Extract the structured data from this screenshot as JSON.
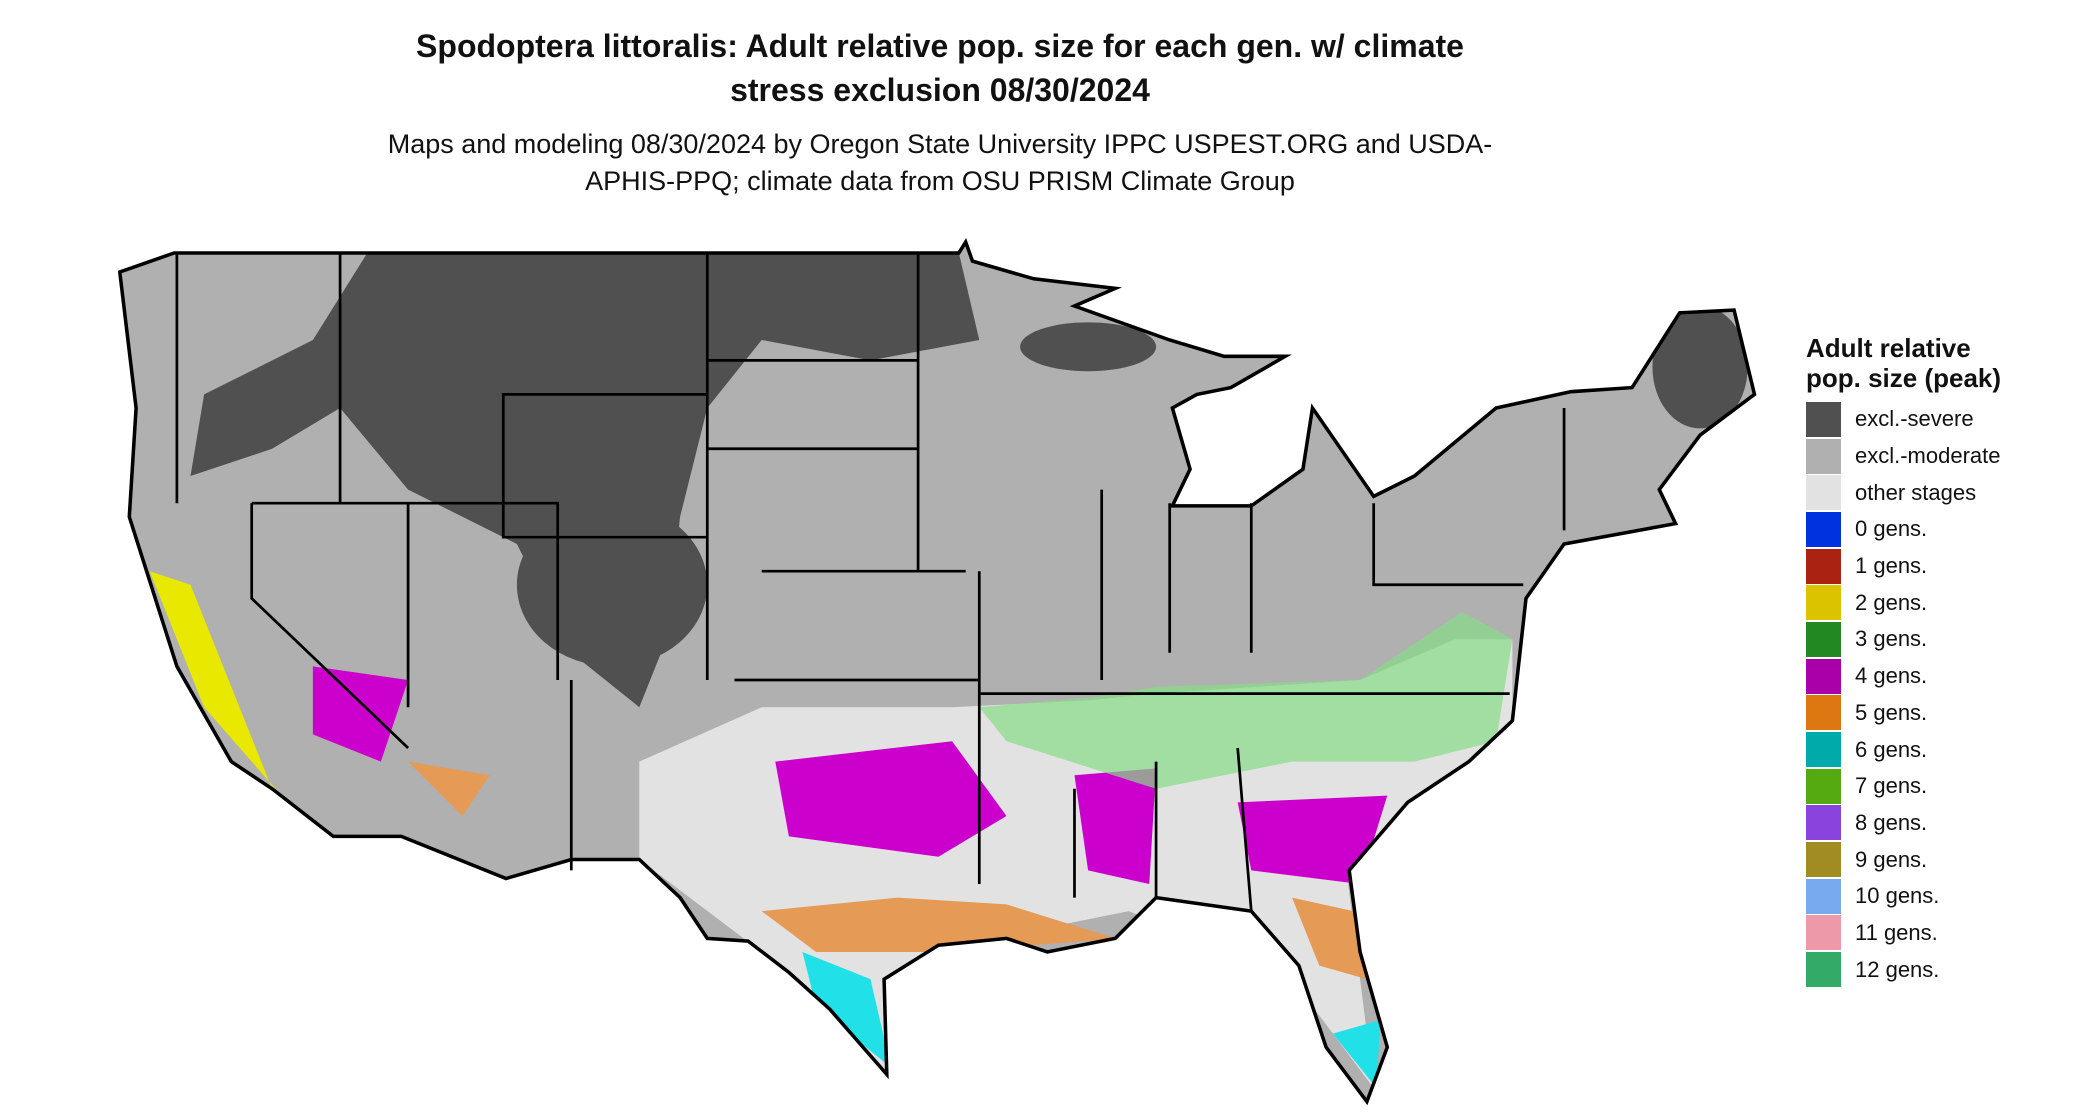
{
  "title": "Spodoptera littoralis: Adult relative pop. size for each gen. w/ climate stress exclusion 08/30/2024",
  "subtitle": "Maps and modeling 08/30/2024 by Oregon State University IPPC USPEST.ORG and USDA-APHIS-PPQ; climate data from OSU PRISM Climate Group",
  "legend": {
    "title": "Adult relative pop. size (peak)",
    "items": [
      {
        "label": "excl.-severe",
        "color": "#505050"
      },
      {
        "label": "excl.-moderate",
        "color": "#b0b0b0"
      },
      {
        "label": "other stages",
        "color": "#e2e2e2"
      },
      {
        "label": "0 gens.",
        "color": "#0033dd"
      },
      {
        "label": "1 gens.",
        "color": "#aa2211"
      },
      {
        "label": "2 gens.",
        "color": "#dcc300"
      },
      {
        "label": "3 gens.",
        "color": "#228822"
      },
      {
        "label": "4 gens.",
        "color": "#aa00aa"
      },
      {
        "label": "5 gens.",
        "color": "#dd7711"
      },
      {
        "label": "6 gens.",
        "color": "#00aaaa"
      },
      {
        "label": "7 gens.",
        "color": "#55aa11"
      },
      {
        "label": "8 gens.",
        "color": "#8844dd"
      },
      {
        "label": "9 gens.",
        "color": "#a08c22"
      },
      {
        "label": "10 gens.",
        "color": "#77aaee"
      },
      {
        "label": "11 gens.",
        "color": "#ee99aa"
      },
      {
        "label": "12 gens.",
        "color": "#33aa66"
      }
    ]
  }
}
